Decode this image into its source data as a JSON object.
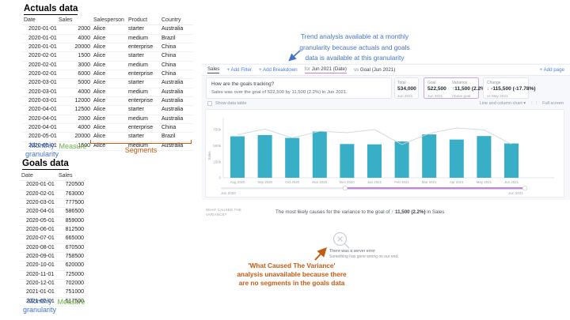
{
  "actuals": {
    "title": "Actuals data",
    "columns": [
      "Date",
      "Sales",
      "Salesperson",
      "Product",
      "Country"
    ],
    "rows": [
      [
        "2020-01-01",
        "2000",
        "Alice",
        "starter",
        "Australia"
      ],
      [
        "2020-01-01",
        "4000",
        "Alice",
        "medium",
        "Brazil"
      ],
      [
        "2020-01-01",
        "20000",
        "Alice",
        "enterprise",
        "China"
      ],
      [
        "2020-02-01",
        "1500",
        "Alice",
        "starter",
        "China"
      ],
      [
        "2020-02-01",
        "3000",
        "Alice",
        "medium",
        "China"
      ],
      [
        "2020-02-01",
        "6000",
        "Alice",
        "enterprise",
        "China"
      ],
      [
        "2020-03-01",
        "5000",
        "Alice",
        "starter",
        "Australia"
      ],
      [
        "2020-03-01",
        "4000",
        "Alice",
        "medium",
        "Australia"
      ],
      [
        "2020-03-01",
        "12000",
        "Alice",
        "enterprise",
        "Australia"
      ],
      [
        "2020-04-01",
        "12500",
        "Alice",
        "starter",
        "Australia"
      ],
      [
        "2020-04-01",
        "2000",
        "Alice",
        "medium",
        "Australia"
      ],
      [
        "2020-04-01",
        "4000",
        "Alice",
        "enterprise",
        "China"
      ],
      [
        "2020-05-01",
        "20000",
        "Alice",
        "starter",
        "Brazil"
      ],
      [
        "2020-05-01",
        "1500",
        "Alice",
        "medium",
        "Australia"
      ]
    ],
    "annotations": {
      "granularity": "Monthly granularity",
      "measure": "Measure",
      "segments": "Segments"
    }
  },
  "goals": {
    "title": "Goals data",
    "columns": [
      "Date",
      "Sales"
    ],
    "rows": [
      [
        "2020-01-01",
        "720500"
      ],
      [
        "2020-02-01",
        "763000"
      ],
      [
        "2020-03-01",
        "777500"
      ],
      [
        "2020-04-01",
        "586500"
      ],
      [
        "2020-05-01",
        "859000"
      ],
      [
        "2020-06-01",
        "812500"
      ],
      [
        "2020-07-01",
        "665000"
      ],
      [
        "2020-08-01",
        "670500"
      ],
      [
        "2020-09-01",
        "758500"
      ],
      [
        "2020-10-01",
        "620000"
      ],
      [
        "2020-11-01",
        "725000"
      ],
      [
        "2020-12-01",
        "702000"
      ],
      [
        "2021-01-01",
        "751000"
      ],
      [
        "2021-02-01",
        "517500"
      ]
    ],
    "annotations": {
      "granularity": "Monthly granularity",
      "measure": "Measure"
    }
  },
  "callouts": {
    "trend": "Trend analysis available at a monthly\ngranularity because actuals and goals\ndata is available at this granularity",
    "variance": "'What Caused The Variance'\nanalysis unavailable because there\nare no segments in the goals data"
  },
  "app": {
    "toolbar": {
      "tab": "Sales",
      "add_filter": "+ Add Filter",
      "add_breakdown": "+ Add Breakdown",
      "for_label": "for",
      "for_value": "Jun 2021 (Date)",
      "vs_label": "vs",
      "vs_value": "Goal (Jun 2021)",
      "add_page": "+ Add page"
    },
    "insight": {
      "question": "How are the goals tracking?",
      "answer": "Sales was over the goal of 522,500 by 11,500 (2.2%) in Jun 2021."
    },
    "kpis": {
      "total": {
        "label": "Total",
        "value": "534,000",
        "period": "Jun 2021"
      },
      "goal": {
        "label": "Goal",
        "value": "522,500",
        "period": "Jun 2021"
      },
      "variance": {
        "label": "Variance",
        "value": "11,500 (2.2%)",
        "status": "Above goal"
      },
      "change": {
        "label": "Change",
        "value": "-115,500 (-17.78%)",
        "period": "vs May 2021"
      }
    },
    "chart_controls": {
      "show_data_table": "Show data table",
      "chart_type": "Line and column chart",
      "full_screen": "Full screen"
    },
    "range": {
      "start": "Jan 2020",
      "end": "Jun 2021"
    },
    "causes": {
      "section_label": "WHAT CAUSED THE VARIANCE?",
      "headline_prefix": "The most likely causes for the variance to the goal of",
      "headline_value": "11,500 (2.2%)",
      "headline_suffix": "in Sales",
      "error_title": "There was a server error",
      "error_detail": "Something has gone wrong on our end."
    }
  },
  "icons": {
    "up_arrow": "↑",
    "down_arrow": "↓",
    "chevron_down": "▾",
    "drag_handle": "⋮⋮"
  },
  "chart_data": {
    "type": "bar",
    "subtype": "line and column chart",
    "title": "",
    "categories": [
      "Aug 2020",
      "Sep 2020",
      "Oct 2020",
      "Nov 2020",
      "Dec 2020",
      "Jan 2021",
      "Feb 2021",
      "Mar 2021",
      "Apr 2021",
      "May 2021",
      "Jun 2021"
    ],
    "series": [
      {
        "name": "Sales (columns)",
        "type": "column",
        "values": [
          645000,
          665000,
          620000,
          720000,
          525000,
          520000,
          565000,
          675000,
          595000,
          649500,
          534000
        ]
      },
      {
        "name": "Goal (line)",
        "type": "line",
        "values": [
          670500,
          758500,
          620000,
          725000,
          702000,
          751000,
          517500,
          690000,
          775000,
          745000,
          522500
        ]
      }
    ],
    "xlabel": "",
    "ylabel": "Sales",
    "yticks": [
      "0",
      "250k",
      "500k",
      "750k"
    ],
    "ytick_values": [
      0,
      250000,
      500000,
      750000
    ],
    "ylim": [
      0,
      800000
    ],
    "grid": false,
    "legend": "none",
    "range_selector": {
      "start": "Jan 2020",
      "end": "Jun 2021",
      "selected_start": "Dec 2020",
      "selected_end": "Jun 2021"
    }
  },
  "colors": {
    "bar_teal": "#38AFC7",
    "goal_line": "#CBD7E0",
    "slider_purple": "#BD86D8",
    "goal_card_border": "#CDA6DD",
    "link_blue": "#4A7FD8",
    "positive_green": "#27A35C",
    "negative_red": "#E25555",
    "annotation_blue": "#4472C4",
    "annotation_green": "#70AD47",
    "annotation_orange": "#C55A11"
  }
}
